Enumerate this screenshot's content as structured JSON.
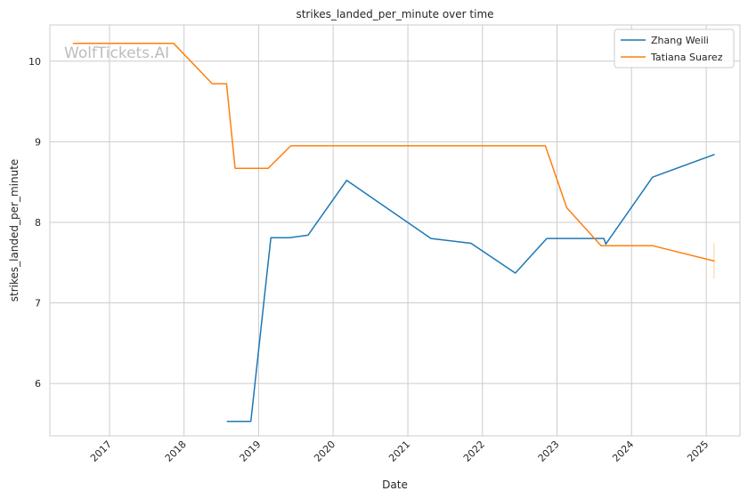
{
  "chart_data": {
    "type": "line",
    "title": "strikes_landed_per_minute over time",
    "xlabel": "Date",
    "ylabel": "strikes_landed_per_minute",
    "watermark": "WolfTickets.AI",
    "xlim": [
      "2016-03-15",
      "2025-06-15"
    ],
    "ylim": [
      5.35,
      10.45
    ],
    "x_ticks": [
      "2017",
      "2018",
      "2019",
      "2020",
      "2021",
      "2022",
      "2023",
      "2024",
      "2025"
    ],
    "y_ticks": [
      6,
      7,
      8,
      9,
      10
    ],
    "grid": true,
    "legend_position": "top-right",
    "series": [
      {
        "name": "Zhang Weili",
        "color": "#1f77b4",
        "points": [
          [
            "2018-08-01",
            5.53
          ],
          [
            "2018-11-24",
            5.53
          ],
          [
            "2019-03-02",
            7.81
          ],
          [
            "2019-06-01",
            7.81
          ],
          [
            "2019-08-31",
            7.84
          ],
          [
            "2020-03-07",
            8.52
          ],
          [
            "2021-04-24",
            7.8
          ],
          [
            "2021-11-06",
            7.74
          ],
          [
            "2022-06-11",
            7.37
          ],
          [
            "2022-11-12",
            7.8
          ],
          [
            "2023-08-19",
            7.8
          ],
          [
            "2023-08-28",
            7.73
          ],
          [
            "2024-04-13",
            8.56
          ],
          [
            "2025-02-08",
            8.84
          ]
        ]
      },
      {
        "name": "Tatiana Suarez",
        "color": "#ff7f0e",
        "points": [
          [
            "2016-07-08",
            10.22
          ],
          [
            "2017-11-11",
            10.22
          ],
          [
            "2018-05-19",
            9.72
          ],
          [
            "2018-07-28",
            9.72
          ],
          [
            "2018-09-08",
            8.67
          ],
          [
            "2019-02-17",
            8.67
          ],
          [
            "2019-06-08",
            8.95
          ],
          [
            "2022-11-05",
            8.95
          ],
          [
            "2023-02-18",
            8.18
          ],
          [
            "2023-08-05",
            7.71
          ],
          [
            "2024-04-13",
            7.71
          ],
          [
            "2025-02-08",
            7.52
          ]
        ],
        "error_band": {
          "x": "2025-02-08",
          "low": 7.3,
          "high": 7.74
        }
      }
    ]
  }
}
